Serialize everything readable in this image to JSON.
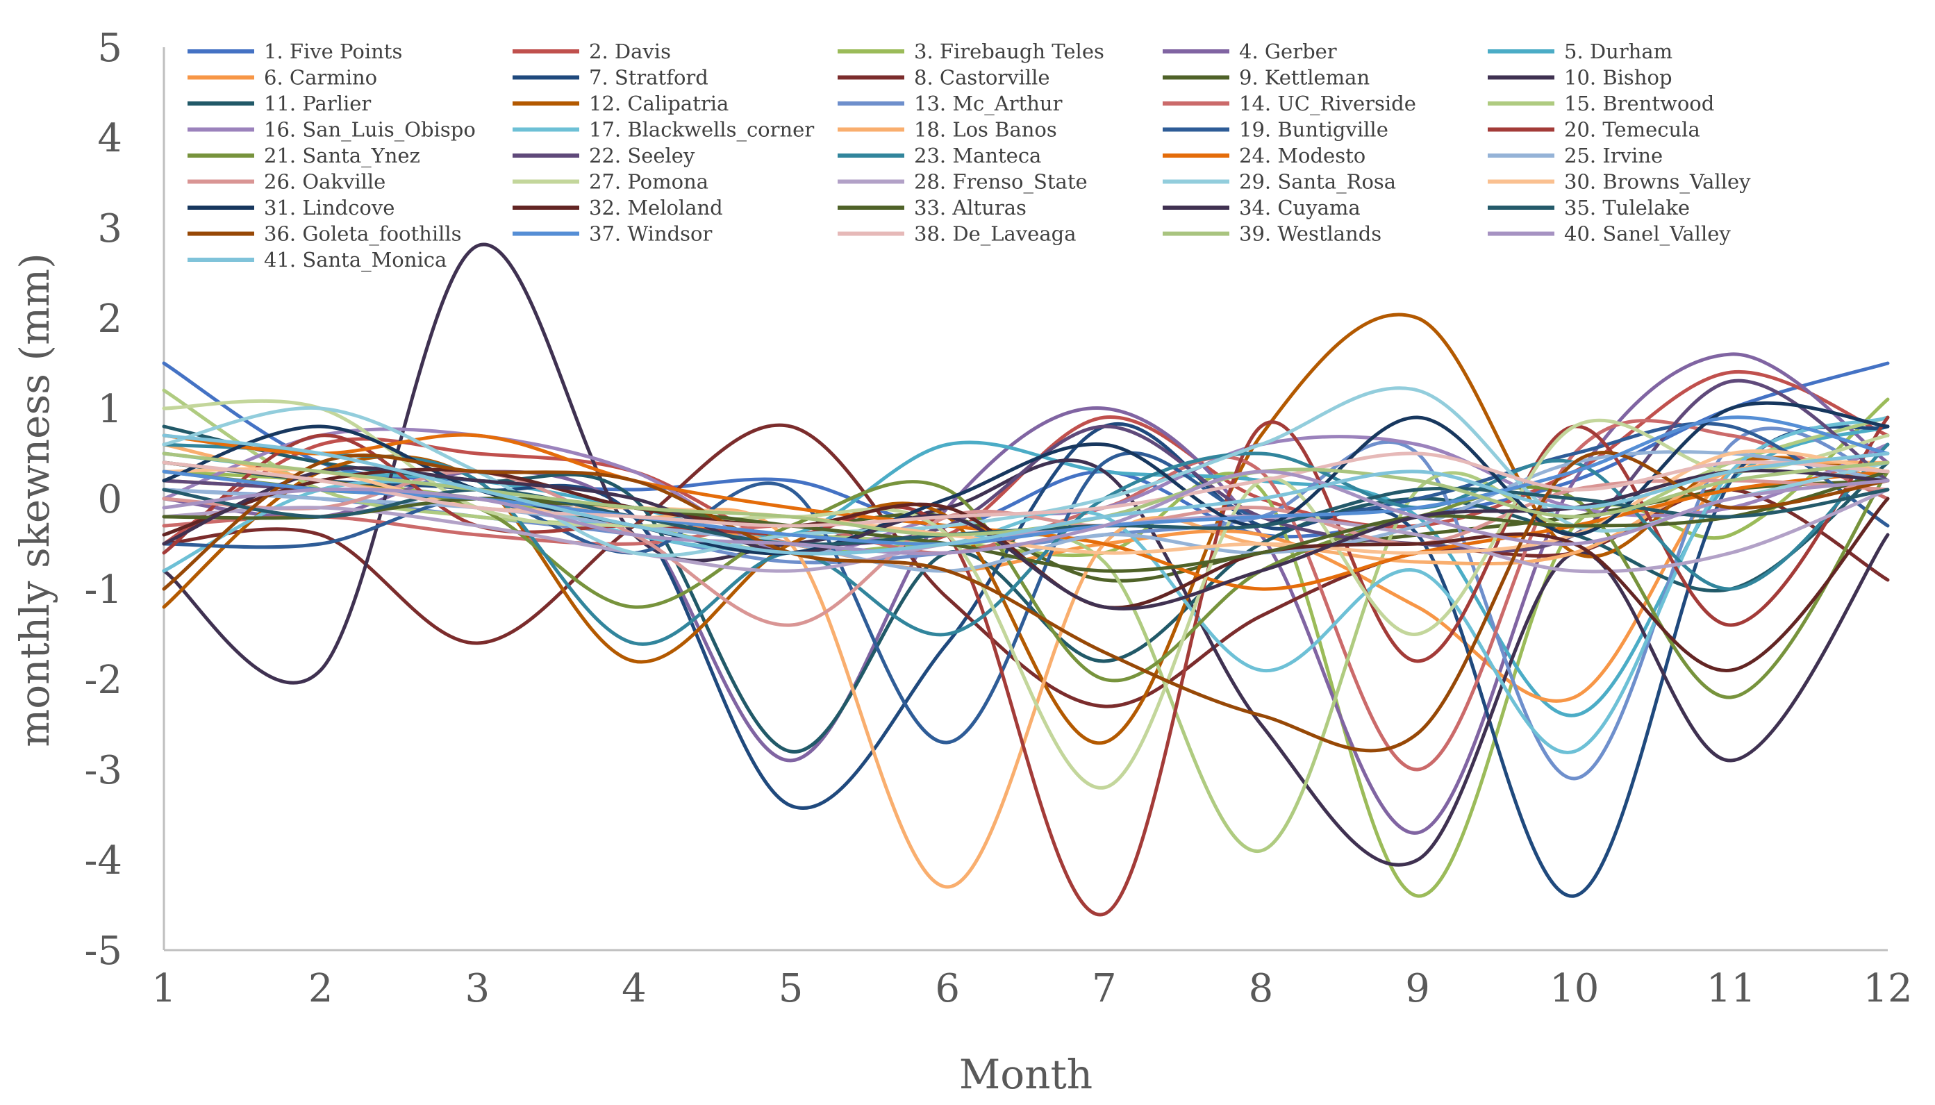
{
  "chart_data": {
    "type": "line",
    "xlabel": "Month",
    "ylabel": "monthly skewness (mm)",
    "x": [
      1,
      2,
      3,
      4,
      5,
      6,
      7,
      8,
      9,
      10,
      11,
      12
    ],
    "xlim": [
      1,
      12
    ],
    "ylim": [
      -5,
      5
    ],
    "yticks": [
      "5",
      "4",
      "3",
      "2",
      "1",
      "0",
      "-1",
      "-2",
      "-3",
      "-4",
      "-5"
    ],
    "xticks": [
      "1",
      "2",
      "3",
      "4",
      "5",
      "6",
      "7",
      "8",
      "9",
      "10",
      "11",
      "12"
    ],
    "legend_position": "top",
    "series": [
      {
        "name": "1. Five Points",
        "color": "#4472C4",
        "values": [
          1.5,
          0.4,
          0.2,
          0.1,
          0.2,
          -0.3,
          0.3,
          -0.4,
          -0.2,
          0.2,
          1.0,
          1.5
        ]
      },
      {
        "name": "2. Davis",
        "color": "#C0504D",
        "values": [
          -0.5,
          0.6,
          0.5,
          0.3,
          -0.5,
          -0.4,
          0.9,
          0.0,
          -0.3,
          0.3,
          1.4,
          0.7
        ]
      },
      {
        "name": "3. Firebaugh Teles",
        "color": "#9BBB59",
        "values": [
          0.3,
          0.2,
          0.0,
          -0.3,
          -0.6,
          -0.5,
          -0.6,
          0.1,
          -4.4,
          -0.3,
          -0.4,
          1.1
        ]
      },
      {
        "name": "4. Gerber",
        "color": "#8064A2",
        "values": [
          0.0,
          -0.2,
          0.3,
          -0.2,
          -2.9,
          -0.1,
          1.0,
          -0.4,
          -3.7,
          0.2,
          1.6,
          0.4
        ]
      },
      {
        "name": "5. Durham",
        "color": "#4BACC6",
        "values": [
          0.5,
          0.3,
          0.2,
          -0.1,
          -0.4,
          0.6,
          0.3,
          0.2,
          -0.2,
          -2.4,
          0.2,
          0.8
        ]
      },
      {
        "name": "6. Carmino",
        "color": "#F79646",
        "values": [
          0.2,
          0.1,
          0.0,
          -0.2,
          -0.5,
          -0.8,
          -0.5,
          -0.4,
          -1.2,
          -2.2,
          0.3,
          0.2
        ]
      },
      {
        "name": "7. Stratford",
        "color": "#1F497D",
        "values": [
          0.4,
          0.2,
          0.1,
          -0.2,
          -3.4,
          -1.6,
          0.8,
          -0.3,
          -0.4,
          -4.4,
          0.2,
          0.8
        ]
      },
      {
        "name": "8. Castorville",
        "color": "#7B2C2C",
        "values": [
          -0.5,
          -0.4,
          -1.6,
          -0.3,
          0.8,
          -1.1,
          -2.3,
          -1.3,
          -0.6,
          -0.6,
          0.1,
          -0.9
        ]
      },
      {
        "name": "9. Kettleman",
        "color": "#4F6228",
        "values": [
          0.4,
          0.2,
          0.0,
          -0.1,
          -0.3,
          -0.2,
          -0.9,
          -0.6,
          -0.4,
          -0.2,
          0.1,
          0.2
        ]
      },
      {
        "name": "10. Bishop",
        "color": "#3F3151",
        "values": [
          -0.8,
          -1.9,
          2.8,
          -0.4,
          -0.5,
          -0.1,
          0.3,
          -2.5,
          -4.0,
          -0.6,
          -2.9,
          -0.4
        ]
      },
      {
        "name": "11. Parlier",
        "color": "#215968",
        "values": [
          0.8,
          0.4,
          0.2,
          0.0,
          -2.8,
          -0.6,
          -1.8,
          -0.5,
          0.0,
          -0.4,
          -1.0,
          0.4
        ]
      },
      {
        "name": "12. Calipatria",
        "color": "#B35900",
        "values": [
          -1.2,
          0.3,
          0.2,
          -1.8,
          -0.5,
          -0.2,
          -2.7,
          0.7,
          2.0,
          -0.6,
          0.4,
          0.3
        ]
      },
      {
        "name": "13. Mc_Arthur",
        "color": "#6E8FCC",
        "values": [
          0.1,
          0.0,
          -0.2,
          -0.4,
          -0.7,
          -0.6,
          -0.4,
          -0.2,
          0.5,
          -3.1,
          0.6,
          0.2
        ]
      },
      {
        "name": "14. UC_Riverside",
        "color": "#CB6A6A",
        "values": [
          -0.3,
          -0.2,
          -0.4,
          -0.5,
          -0.3,
          -0.6,
          -0.1,
          0.3,
          -3.0,
          0.5,
          0.7,
          0.0
        ]
      },
      {
        "name": "15. Brentwood",
        "color": "#AFCB80",
        "values": [
          1.2,
          0.1,
          -0.2,
          -0.3,
          -0.4,
          -0.5,
          -0.7,
          -3.9,
          0.1,
          -0.3,
          0.4,
          0.9
        ]
      },
      {
        "name": "16. San_Luis_Obispo",
        "color": "#9B82BC",
        "values": [
          0.0,
          0.7,
          0.7,
          0.3,
          -0.6,
          -0.2,
          -0.1,
          0.6,
          0.6,
          -0.1,
          -0.1,
          0.6
        ]
      },
      {
        "name": "17. Blackwells_corner",
        "color": "#6DC0D6",
        "values": [
          -0.8,
          0.1,
          0.1,
          -0.4,
          -0.6,
          -0.5,
          -0.2,
          -1.9,
          -0.8,
          -2.8,
          0.3,
          0.9
        ]
      },
      {
        "name": "18. Los Banos",
        "color": "#F9AE6E",
        "values": [
          0.6,
          0.2,
          0.0,
          -0.2,
          -0.5,
          -4.3,
          -0.5,
          -0.5,
          -0.7,
          -0.6,
          0.3,
          0.4
        ]
      },
      {
        "name": "19. Buntigville",
        "color": "#2E5C97",
        "values": [
          -0.5,
          -0.5,
          0.0,
          -0.6,
          0.1,
          -2.7,
          0.4,
          -0.2,
          0.0,
          0.5,
          0.8,
          -0.3
        ]
      },
      {
        "name": "20. Temecula",
        "color": "#A33B38",
        "values": [
          -0.6,
          0.7,
          -0.3,
          -0.3,
          -0.4,
          -0.4,
          -4.6,
          0.8,
          -1.8,
          0.8,
          -1.4,
          0.9
        ]
      },
      {
        "name": "21. Santa_Ynez",
        "color": "#77933C",
        "values": [
          0.3,
          0.1,
          -0.1,
          -1.2,
          -0.3,
          0.1,
          -2.0,
          -0.8,
          -0.2,
          0.0,
          -2.2,
          0.3
        ]
      },
      {
        "name": "22. Seeley",
        "color": "#5F497A",
        "values": [
          0.2,
          0.1,
          0.0,
          -0.2,
          -0.5,
          -0.3,
          0.8,
          -0.2,
          -0.5,
          -0.4,
          1.3,
          0.2
        ]
      },
      {
        "name": "23. Manteca",
        "color": "#31859C",
        "values": [
          0.6,
          0.5,
          0.2,
          -1.6,
          -0.6,
          -1.5,
          0.0,
          0.5,
          -0.1,
          0.4,
          -1.0,
          0.6
        ]
      },
      {
        "name": "24. Modesto",
        "color": "#E46C0A",
        "values": [
          0.7,
          0.5,
          0.7,
          0.2,
          -0.1,
          -0.3,
          -0.5,
          -1.0,
          -0.6,
          -0.3,
          0.1,
          0.3
        ]
      },
      {
        "name": "25. Irvine",
        "color": "#95B3D7",
        "values": [
          0.1,
          0.0,
          -0.1,
          -0.3,
          -0.5,
          -0.8,
          -0.4,
          -0.6,
          -0.3,
          0.4,
          0.5,
          0.2
        ]
      },
      {
        "name": "26. Oakville",
        "color": "#D99594",
        "values": [
          0.0,
          -0.1,
          0.3,
          -0.4,
          -1.4,
          -0.2,
          -0.3,
          -0.1,
          -0.5,
          0.1,
          0.2,
          0.1
        ]
      },
      {
        "name": "27. Pomona",
        "color": "#C3D69B",
        "values": [
          1.0,
          1.0,
          -0.1,
          -0.3,
          -0.2,
          -0.4,
          -3.2,
          0.2,
          -1.5,
          0.8,
          0.3,
          0.7
        ]
      },
      {
        "name": "28. Frenso_State",
        "color": "#B2A1C7",
        "values": [
          -0.2,
          -0.1,
          -0.3,
          -0.6,
          -0.8,
          -0.5,
          -0.3,
          -0.2,
          -0.4,
          -0.8,
          -0.6,
          0.1
        ]
      },
      {
        "name": "29. Santa_Rosa",
        "color": "#92CDDC",
        "values": [
          0.6,
          1.0,
          0.3,
          -0.6,
          -0.4,
          -0.3,
          0.0,
          0.6,
          1.2,
          -0.3,
          0.0,
          0.4
        ]
      },
      {
        "name": "30. Browns_Valley",
        "color": "#FAC090",
        "values": [
          0.3,
          0.3,
          -0.1,
          -0.1,
          -0.2,
          -0.4,
          -0.6,
          -0.5,
          -0.6,
          -0.4,
          0.5,
          0.3
        ]
      },
      {
        "name": "31. Lindcove",
        "color": "#17375E",
        "values": [
          0.2,
          0.8,
          0.1,
          -0.3,
          -0.6,
          0.0,
          0.6,
          -0.3,
          0.9,
          -0.4,
          1.0,
          0.8
        ]
      },
      {
        "name": "32. Meloland",
        "color": "#632523",
        "values": [
          -0.4,
          0.2,
          0.3,
          -0.1,
          -0.3,
          -0.1,
          -1.2,
          -0.6,
          -0.5,
          -0.5,
          -1.9,
          0.0
        ]
      },
      {
        "name": "33. Alturas",
        "color": "#4F6228",
        "values": [
          -0.2,
          -0.2,
          0.0,
          -0.1,
          -0.3,
          -0.5,
          -0.8,
          -0.6,
          -0.2,
          -0.3,
          -0.2,
          0.3
        ]
      },
      {
        "name": "34. Cuyama",
        "color": "#403151",
        "values": [
          -0.5,
          0.3,
          0.2,
          0.0,
          -0.6,
          -0.2,
          -1.2,
          -0.8,
          -0.2,
          -0.1,
          0.3,
          0.2
        ]
      },
      {
        "name": "35. Tulelake",
        "color": "#245A6A",
        "values": [
          0.1,
          -0.2,
          0.1,
          -0.2,
          -0.5,
          -0.4,
          -0.3,
          -0.3,
          0.1,
          0.0,
          -0.2,
          0.1
        ]
      },
      {
        "name": "36. Goleta_foothills",
        "color": "#974806",
        "values": [
          -1.0,
          0.4,
          0.3,
          0.2,
          -0.6,
          -0.8,
          -1.7,
          -2.4,
          -2.6,
          0.4,
          -0.1,
          0.2
        ]
      },
      {
        "name": "37. Windsor",
        "color": "#558ED5",
        "values": [
          0.3,
          0.1,
          0.0,
          -0.2,
          -0.4,
          -0.5,
          -0.3,
          -0.2,
          -0.1,
          0.3,
          0.9,
          0.5
        ]
      },
      {
        "name": "38. De_Laveaga",
        "color": "#E6B9B8",
        "values": [
          0.4,
          0.2,
          -0.1,
          -0.2,
          -0.3,
          -0.2,
          -0.1,
          0.2,
          0.5,
          0.1,
          0.4,
          0.3
        ]
      },
      {
        "name": "39. Westlands",
        "color": "#A9C47F",
        "values": [
          0.5,
          0.3,
          0.1,
          -0.1,
          -0.2,
          -0.4,
          -0.2,
          0.3,
          0.2,
          -0.2,
          0.2,
          0.4
        ]
      },
      {
        "name": "40. Sanel_Valley",
        "color": "#A692C2",
        "values": [
          -0.1,
          0.1,
          0.0,
          -0.4,
          -0.5,
          -0.6,
          -0.3,
          0.3,
          -0.2,
          -0.5,
          0.0,
          0.2
        ]
      },
      {
        "name": "41. Santa_Monica",
        "color": "#7FC3DA",
        "values": [
          0.7,
          0.5,
          0.1,
          -0.3,
          -0.6,
          -0.5,
          -0.2,
          0.0,
          0.3,
          -0.1,
          0.3,
          0.5
        ]
      }
    ]
  }
}
